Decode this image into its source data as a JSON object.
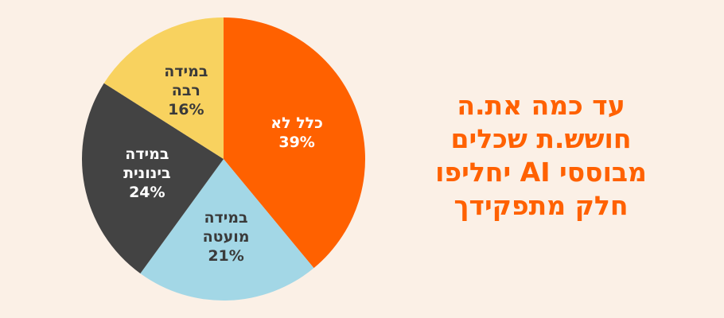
{
  "chart_data": {
    "type": "pie",
    "title": "עד כמה את.ה חושש.ת שכלים מבוססי AI יחליפו חלק מתפקידך",
    "categories": [
      "כלל לא",
      "במידה מועטה",
      "במידה בינונית",
      "במידה רבה"
    ],
    "values": [
      39,
      21,
      24,
      16
    ],
    "value_labels": [
      "39%",
      "21%",
      "24%",
      "16%"
    ],
    "colors": [
      "#ff6100",
      "#a3d7e6",
      "#434343",
      "#f8d25f"
    ],
    "title_color": "#ff6100"
  }
}
